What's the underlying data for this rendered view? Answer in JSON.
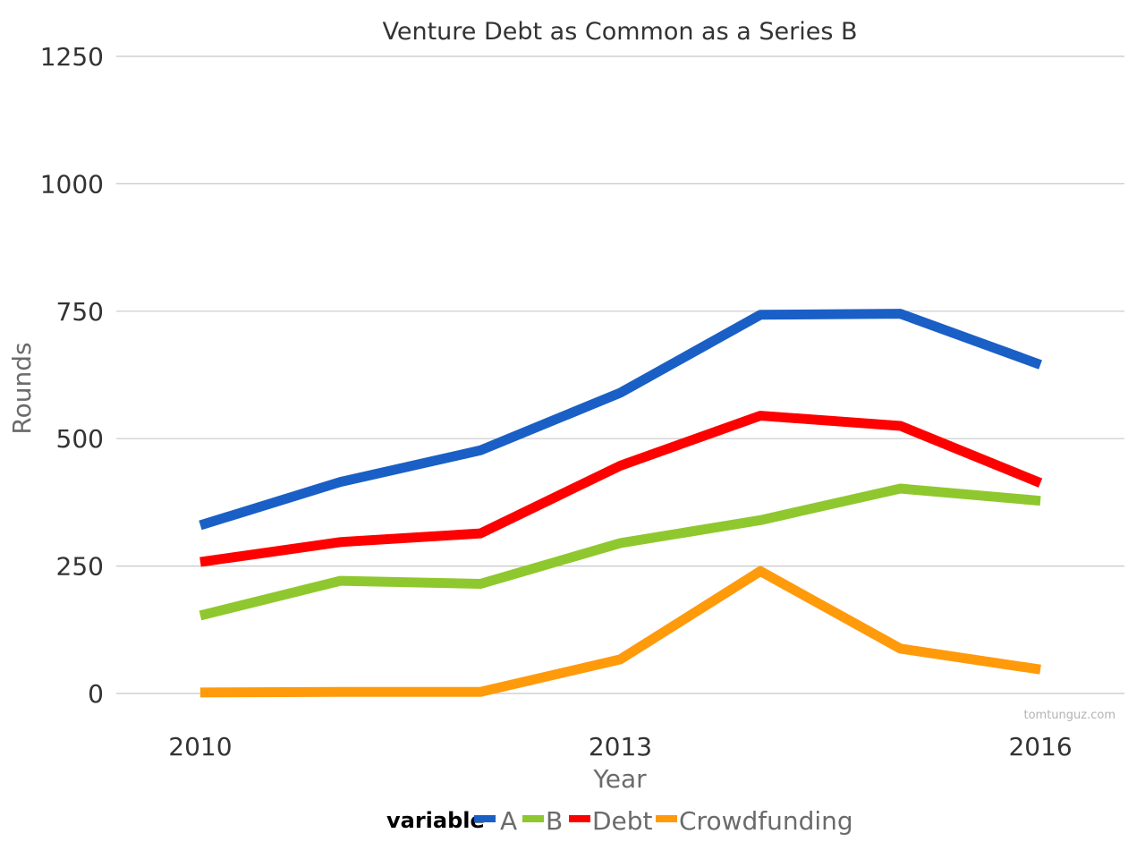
{
  "chart_data": {
    "type": "line",
    "title": "Venture Debt as Common as a Series B",
    "xlabel": "Year",
    "ylabel": "Rounds",
    "x": [
      2010,
      2011,
      2012,
      2013,
      2014,
      2015,
      2016
    ],
    "x_ticks": [
      "2010",
      "2013",
      "2016"
    ],
    "x_tick_values": [
      2010,
      2013,
      2016
    ],
    "xlim": [
      2009.4,
      2016.6
    ],
    "ylim": [
      0,
      1250
    ],
    "y_ticks": [
      "0",
      "250",
      "500",
      "750",
      "1000",
      "1250"
    ],
    "y_tick_values": [
      0,
      250,
      500,
      750,
      1000,
      1250
    ],
    "grid": "horizontal",
    "legend": {
      "title": "variable",
      "position": "bottom",
      "entries": [
        "A",
        "B",
        "Debt",
        "Crowdfunding"
      ]
    },
    "series": [
      {
        "name": "A",
        "color": "#1a5fc6",
        "values": [
          330,
          415,
          477,
          590,
          743,
          745,
          645
        ]
      },
      {
        "name": "B",
        "color": "#8fc82e",
        "values": [
          153,
          221,
          215,
          295,
          340,
          402,
          378
        ]
      },
      {
        "name": "Debt",
        "color": "#ff0000",
        "values": [
          258,
          297,
          314,
          447,
          545,
          525,
          413
        ]
      },
      {
        "name": "Crowdfunding",
        "color": "#ff9a0b",
        "values": [
          2,
          3,
          3,
          67,
          240,
          88,
          47
        ]
      }
    ]
  },
  "watermark": "tomtunguz.com"
}
